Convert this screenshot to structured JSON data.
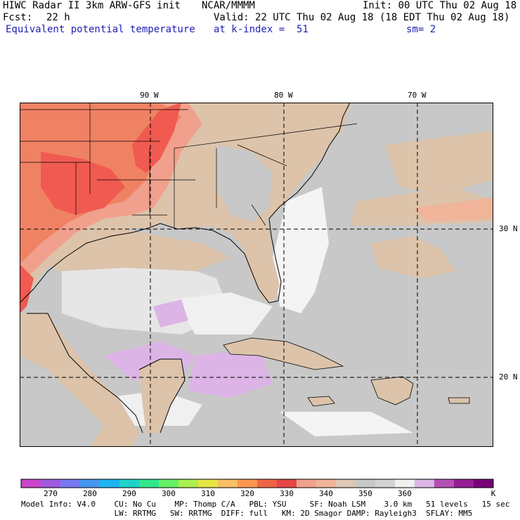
{
  "header": {
    "model": "HIWC Radar II 3km ARW-GFS init",
    "org": "NCAR/MMMM",
    "init": "Init: 00 UTC Thu 02 Aug 18",
    "fcst_label": "Fcst:",
    "fcst_value": "22 h",
    "valid": "Valid: 22 UTC Thu 02 Aug 18 (18 EDT Thu 02 Aug 18)",
    "field": "Equivalent potential temperature",
    "level": "at k-index =  51",
    "smooth": "sm= 2"
  },
  "axes": {
    "lon_labels": [
      "90 W",
      "80 W",
      "70 W"
    ],
    "lat_labels": [
      "30 N",
      "20 N"
    ]
  },
  "colorbar": {
    "unit": "K",
    "ticks": [
      "270",
      "280",
      "290",
      "300",
      "310",
      "320",
      "330",
      "340",
      "350",
      "360"
    ],
    "colors": [
      "#c844c8",
      "#a05ae0",
      "#7878f0",
      "#4696f0",
      "#1eb4f0",
      "#1ed2c8",
      "#32e68c",
      "#64f064",
      "#aaf050",
      "#e6e646",
      "#fabe64",
      "#fa9650",
      "#f06446",
      "#e64646",
      "#f0a08c",
      "#f0b49a",
      "#dcc8b4",
      "#c8c8c8",
      "#d2d2d2",
      "#f0f0f0",
      "#dcb4e6",
      "#b450b4",
      "#961e96",
      "#780078"
    ],
    "map_colors": {
      "ocean_gray": "#c8c8c8",
      "light_gray": "#e6e6e6",
      "white": "#f4f4f4",
      "tan": "#dcc3aa",
      "salmon": "#f0a08c",
      "orange": "#f08264",
      "red": "#f05a50",
      "lavender": "#dcb4e6"
    }
  },
  "footer": {
    "line1": "Model Info: V4.0    CU: No Cu    MP: Thomp C/A   PBL: YSU     SF: Noah LSM    3.0 km   51 levels   15 sec",
    "line2": "                    LW: RRTMG   SW: RRTMG  DIFF: full   KM: 2D Smagor DAMP: Rayleigh3  SFLAY: MM5"
  }
}
